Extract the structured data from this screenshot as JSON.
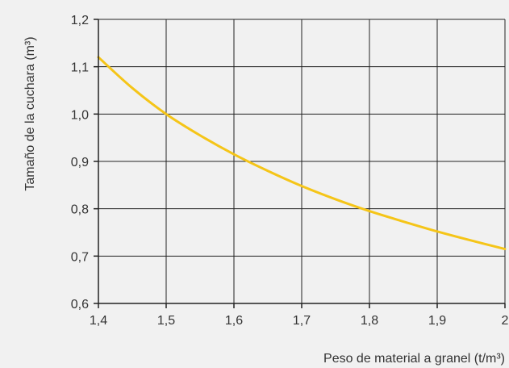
{
  "chart_data": {
    "type": "line",
    "xlabel": "Peso de material a granel (t/m³)",
    "ylabel": "Tamaño de la cuchara (m³)",
    "xlim": [
      1.4,
      2.0
    ],
    "ylim": [
      0.6,
      1.2
    ],
    "x_ticks": [
      "1,4",
      "1,5",
      "1,6",
      "1,7",
      "1,8",
      "1,9",
      "2"
    ],
    "y_ticks": [
      "0,6",
      "0,7",
      "0,8",
      "0,9",
      "1,0",
      "1,1",
      "1,2"
    ],
    "grid": true,
    "series": [
      {
        "color": "#f5c518",
        "x": [
          1.4,
          1.45,
          1.5,
          1.55,
          1.6,
          1.65,
          1.7,
          1.75,
          1.8,
          1.85,
          1.9,
          1.95,
          2.0
        ],
        "y": [
          1.12,
          1.055,
          1.0,
          0.955,
          0.915,
          0.88,
          0.848,
          0.82,
          0.795,
          0.773,
          0.752,
          0.733,
          0.715
        ]
      }
    ]
  }
}
